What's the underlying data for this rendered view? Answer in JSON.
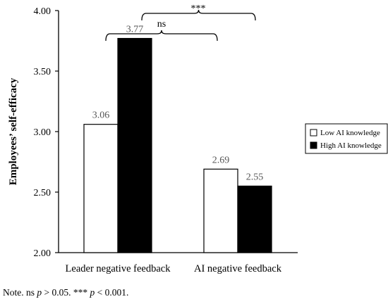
{
  "chart_data": {
    "type": "bar",
    "title": "",
    "xlabel": "",
    "ylabel": "Employees’ self-efficacy",
    "ylim": [
      2.0,
      4.0
    ],
    "yticks": [
      "2.00",
      "2.50",
      "3.00",
      "3.50",
      "4.00"
    ],
    "categories": [
      "Leader negative feedback",
      "AI negative feedback"
    ],
    "series": [
      {
        "name": "Low AI knowledge",
        "color": "#ffffff",
        "values": [
          3.06,
          2.69
        ],
        "labels": [
          "3.06",
          "2.69"
        ]
      },
      {
        "name": "High AI knowledge",
        "color": "#000000",
        "values": [
          3.77,
          2.55
        ],
        "labels": [
          "3.77",
          "2.55"
        ]
      }
    ],
    "grid": false,
    "legend_position": "right",
    "annotations": [
      {
        "text": "ns",
        "between": "Leader negative feedback"
      },
      {
        "text": "***",
        "between": "High AI knowledge across feedback sources"
      }
    ]
  },
  "note": {
    "prefix": "Note. ns ",
    "p1": "p",
    "mid": " > 0.05. *** ",
    "p2": "p",
    "suffix": " < 0.001."
  }
}
